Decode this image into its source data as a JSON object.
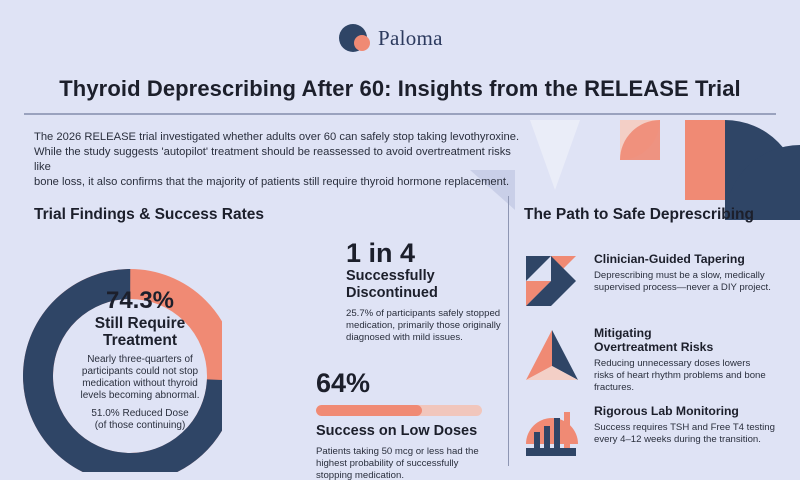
{
  "brand": {
    "name": "Paloma"
  },
  "title": "Thyroid Deprescribing After 60: Insights from the RELEASE Trial",
  "intro": [
    "The 2026 RELEASE trial investigated whether adults over 60 can safely stop taking levothyroxine.",
    "While the study suggests 'autopilot' treatment should be reassessed to avoid overtreatment risks like",
    "bone loss, it also confirms that the majority of patients still require thyroid hormone replacement."
  ],
  "findings": {
    "heading": "Trial Findings & Success Rates",
    "donut": {
      "percent_label": "74.3%",
      "value": 74.3,
      "label_lines": [
        "Still Require",
        "Treatment"
      ],
      "desc_lines": [
        "Nearly three-quarters of",
        "participants could not stop",
        "medication without thyroid",
        "levels becoming abnormal."
      ],
      "note_lines": [
        "51.0% Reduced Dose",
        "(of those continuing)"
      ],
      "colors": {
        "main": "#2f4566",
        "accent": "#f08a74"
      }
    },
    "stat_one": {
      "big": "1 in 4",
      "label_lines": [
        "Successfully",
        "Discontinued"
      ],
      "desc_lines": [
        "25.7% of participants safely stopped",
        "medication, primarily those originally",
        "diagnosed with mild issues."
      ]
    },
    "stat_two": {
      "big": "64%",
      "value": 64,
      "label": "Success on Low Doses",
      "desc_lines": [
        "Patients taking 50 mcg or less had the",
        "highest probability of successfully",
        "stopping medication."
      ]
    }
  },
  "path": {
    "heading": "The Path to Safe Deprescribing",
    "items": [
      {
        "title_lines": [
          "Clinician-Guided Tapering"
        ],
        "desc_lines": [
          "Deprescribing must be a slow, medically",
          "supervised process—never a DIY project."
        ],
        "icon": "tapering-icon"
      },
      {
        "title_lines": [
          "Mitigating",
          "Overtreatment Risks"
        ],
        "desc_lines": [
          "Reducing unnecessary doses lowers",
          "risks of heart rhythm problems and bone",
          "fractures."
        ],
        "icon": "risk-pyramid-icon"
      },
      {
        "title_lines": [
          "Rigorous Lab Monitoring"
        ],
        "desc_lines": [
          "Success requires TSH and Free T4 testing",
          "every 4–12 weeks during the transition."
        ],
        "icon": "lab-chart-icon"
      }
    ]
  },
  "colors": {
    "navy": "#2f4566",
    "coral": "#f08a74",
    "peach": "#f1c6bc",
    "background": "#dfe3f5"
  }
}
